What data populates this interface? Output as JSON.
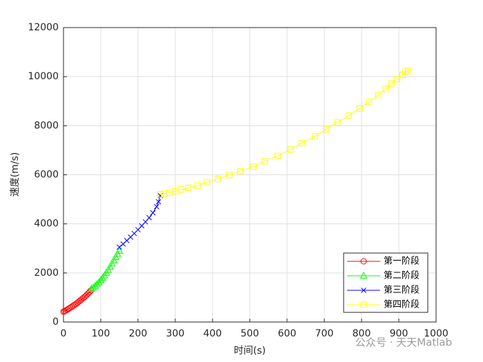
{
  "chart_data": {
    "type": "line",
    "xlabel": "时间(s)",
    "ylabel": "速度(m/s)",
    "xlim": [
      0,
      1000
    ],
    "ylim": [
      0,
      12000
    ],
    "xticks": [
      0,
      100,
      200,
      300,
      400,
      500,
      600,
      700,
      800,
      900,
      1000
    ],
    "yticks": [
      0,
      2000,
      4000,
      6000,
      8000,
      10000,
      12000
    ],
    "grid": true,
    "legend": "lower right",
    "annotation": "公众号 · 天天Matlab",
    "series": [
      {
        "name": "第一阶段",
        "color": "#ff0000",
        "marker": "o",
        "x": [
          0,
          3,
          6,
          10,
          14,
          18,
          22,
          26,
          30,
          34,
          38,
          42,
          46,
          50,
          54,
          58,
          62,
          66,
          70,
          74
        ],
        "values": [
          420,
          440,
          470,
          500,
          540,
          580,
          620,
          660,
          700,
          740,
          790,
          840,
          890,
          940,
          990,
          1040,
          1100,
          1160,
          1220,
          1290
        ]
      },
      {
        "name": "第二阶段",
        "color": "#00ff00",
        "marker": "^",
        "x": [
          75,
          80,
          85,
          90,
          95,
          100,
          105,
          110,
          115,
          120,
          125,
          130,
          135,
          140,
          145,
          150
        ],
        "values": [
          1350,
          1400,
          1460,
          1530,
          1610,
          1700,
          1790,
          1890,
          2000,
          2120,
          2250,
          2380,
          2510,
          2640,
          2770,
          2900
        ]
      },
      {
        "name": "第三阶段",
        "color": "#0000ff",
        "marker": "x",
        "x": [
          150,
          160,
          170,
          180,
          190,
          200,
          210,
          220,
          230,
          240,
          250,
          255,
          260
        ],
        "values": [
          3050,
          3180,
          3320,
          3460,
          3610,
          3760,
          3920,
          4080,
          4250,
          4450,
          4700,
          4900,
          5150
        ]
      },
      {
        "name": "第四阶段",
        "color": "#ffff00",
        "marker": "s",
        "x": [
          260,
          270,
          285,
          300,
          315,
          335,
          360,
          385,
          415,
          445,
          475,
          510,
          540,
          575,
          610,
          640,
          675,
          705,
          735,
          765,
          795,
          820,
          845,
          865,
          880,
          895,
          910,
          918,
          925
        ],
        "values": [
          5200,
          5230,
          5270,
          5330,
          5400,
          5470,
          5560,
          5700,
          5830,
          5990,
          6150,
          6330,
          6550,
          6770,
          7030,
          7290,
          7570,
          7850,
          8130,
          8410,
          8700,
          8970,
          9250,
          9500,
          9720,
          9900,
          10070,
          10200,
          10250
        ]
      }
    ]
  }
}
